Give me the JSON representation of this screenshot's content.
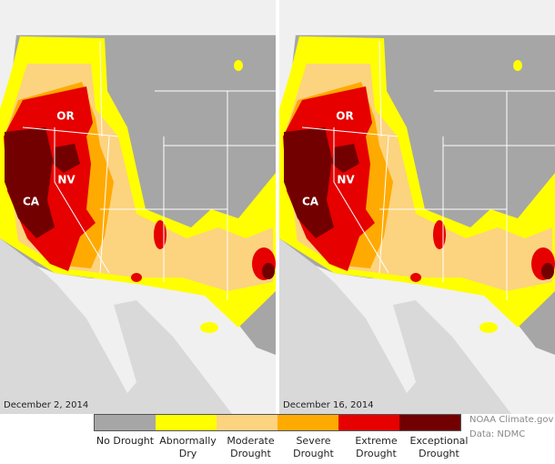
{
  "panels": [
    {
      "date": "December 2, 2014",
      "labels": {
        "or": "OR",
        "nv": "NV",
        "ca": "CA"
      }
    },
    {
      "date": "December 16, 2014",
      "labels": {
        "or": "OR",
        "nv": "NV",
        "ca": "CA"
      }
    }
  ],
  "legend": [
    {
      "label": "No Drought",
      "color": "#a6a6a6"
    },
    {
      "label": "Abnormally Dry",
      "color": "#ffff00"
    },
    {
      "label": "Moderate Drought",
      "color": "#fcd37f"
    },
    {
      "label": "Severe Drought",
      "color": "#ffaa00"
    },
    {
      "label": "Extreme Drought",
      "color": "#e60000"
    },
    {
      "label": "Exceptional Drought",
      "color": "#730000"
    }
  ],
  "credit": [
    "NOAA Climate.gov",
    "Data: NDMC"
  ]
}
